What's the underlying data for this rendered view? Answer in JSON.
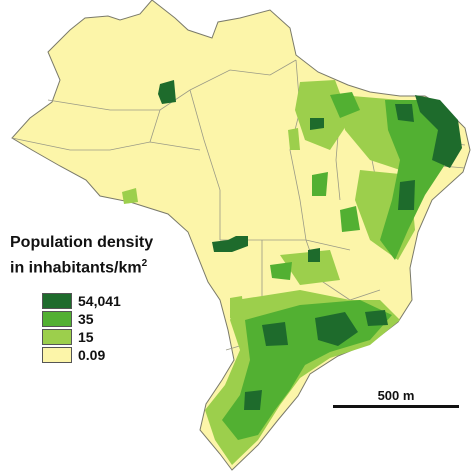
{
  "colors": {
    "background": "#ffffff",
    "land": "#fcf5a9",
    "border": "#7a7a6a",
    "class_lowest": "#fcf5a9",
    "class_low": "#9ccf4c",
    "class_mid": "#52b032",
    "class_high": "#1e6b2c"
  },
  "legend": {
    "title_line1": "Population density",
    "title_line2": "in inhabitants/km",
    "title_sup": "2",
    "items": [
      {
        "label": "54,041",
        "color": "#1e6b2c"
      },
      {
        "label": "35",
        "color": "#52b032"
      },
      {
        "label": "15",
        "color": "#9ccf4c"
      },
      {
        "label": "0.09",
        "color": "#fcf5a9"
      }
    ]
  },
  "scale": {
    "label": "500 m"
  }
}
